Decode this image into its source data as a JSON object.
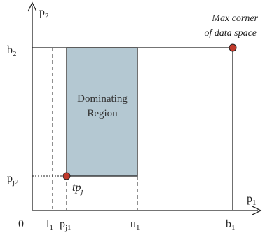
{
  "axes": {
    "y_axis_label": {
      "main": "p",
      "sub": "2"
    },
    "x_axis_label": {
      "main": "p",
      "sub": "1"
    }
  },
  "y_ticks": [
    {
      "main": "b",
      "sub": "2"
    },
    {
      "main": "p",
      "sub": "j2"
    }
  ],
  "x_ticks": [
    {
      "main": "0",
      "sub": ""
    },
    {
      "main": "l",
      "sub": "1"
    },
    {
      "main": "p",
      "sub": "j1"
    },
    {
      "main": "u",
      "sub": "1"
    },
    {
      "main": "b",
      "sub": "1"
    }
  ],
  "region": {
    "label_line1": "Dominating",
    "label_line2": "Region",
    "fill_color": "#b4c8d2"
  },
  "points": {
    "tp": {
      "main": "tp",
      "sub": "j"
    },
    "max_corner": {
      "line1": "Max corner",
      "line2": "of data space"
    },
    "point_color": "#c0392b"
  }
}
